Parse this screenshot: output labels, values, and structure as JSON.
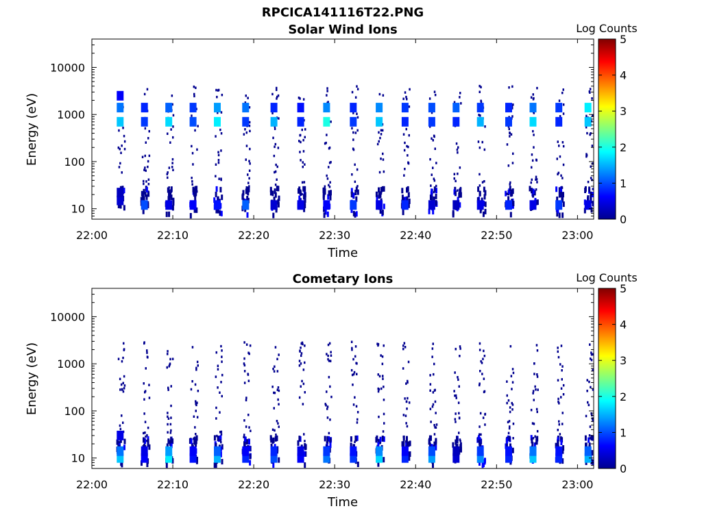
{
  "figure_title": "RPCICA141116T22.PNG",
  "colorbar": {
    "label": "Log Counts",
    "ticks": [
      "0",
      "1",
      "2",
      "3",
      "4",
      "5"
    ],
    "range": [
      0,
      5
    ],
    "colormap": "jet"
  },
  "chart_data": [
    {
      "type": "heatmap",
      "title": "Solar Wind Ions",
      "xlabel": "Time",
      "ylabel": "Energy (eV)",
      "yscale": "log",
      "ylim": [
        6,
        40000
      ],
      "xlim": [
        "22:00",
        "23:02"
      ],
      "x_tick_labels": [
        "22:00",
        "22:10",
        "22:20",
        "22:30",
        "22:40",
        "22:50",
        "23:00"
      ],
      "y_tick_labels": [
        "10",
        "100",
        "1000",
        "10000"
      ],
      "scan_times_min": [
        3.5,
        6.5,
        9.5,
        12.5,
        15.5,
        19.0,
        22.5,
        25.8,
        29.0,
        32.3,
        35.5,
        38.7,
        42.0,
        45.0,
        48.0,
        51.5,
        54.5,
        57.7,
        61.3
      ],
      "cells": [
        {
          "t": 3.5,
          "e": 700,
          "v": 1.6
        },
        {
          "t": 3.5,
          "e": 1400,
          "v": 1.2
        },
        {
          "t": 3.5,
          "e": 2500,
          "v": 0.6
        },
        {
          "t": 3.5,
          "e": 15,
          "v": 0.4
        },
        {
          "t": 3.5,
          "e": 22,
          "v": 0.3
        },
        {
          "t": 6.5,
          "e": 700,
          "v": 0.9
        },
        {
          "t": 6.5,
          "e": 1400,
          "v": 0.8
        },
        {
          "t": 6.5,
          "e": 12,
          "v": 1.0
        },
        {
          "t": 9.5,
          "e": 700,
          "v": 1.7
        },
        {
          "t": 9.5,
          "e": 1400,
          "v": 1.1
        },
        {
          "t": 9.5,
          "e": 12,
          "v": 0.5
        },
        {
          "t": 12.5,
          "e": 700,
          "v": 1.0
        },
        {
          "t": 12.5,
          "e": 1400,
          "v": 0.9
        },
        {
          "t": 12.5,
          "e": 12,
          "v": 0.6
        },
        {
          "t": 15.5,
          "e": 700,
          "v": 1.8
        },
        {
          "t": 15.5,
          "e": 1400,
          "v": 1.4
        },
        {
          "t": 15.5,
          "e": 12,
          "v": 0.7
        },
        {
          "t": 19.0,
          "e": 700,
          "v": 0.9
        },
        {
          "t": 19.0,
          "e": 1400,
          "v": 1.2
        },
        {
          "t": 19.0,
          "e": 12,
          "v": 1.1
        },
        {
          "t": 22.5,
          "e": 700,
          "v": 1.5
        },
        {
          "t": 22.5,
          "e": 1400,
          "v": 0.8
        },
        {
          "t": 22.5,
          "e": 12,
          "v": 0.4
        },
        {
          "t": 25.8,
          "e": 700,
          "v": 0.8
        },
        {
          "t": 25.8,
          "e": 1400,
          "v": 0.7
        },
        {
          "t": 25.8,
          "e": 12,
          "v": 0.5
        },
        {
          "t": 29.0,
          "e": 700,
          "v": 2.0
        },
        {
          "t": 29.0,
          "e": 1400,
          "v": 1.3
        },
        {
          "t": 29.0,
          "e": 12,
          "v": 0.6
        },
        {
          "t": 32.3,
          "e": 700,
          "v": 0.9
        },
        {
          "t": 32.3,
          "e": 1400,
          "v": 0.8
        },
        {
          "t": 32.3,
          "e": 12,
          "v": 0.9
        },
        {
          "t": 35.5,
          "e": 700,
          "v": 1.6
        },
        {
          "t": 35.5,
          "e": 1400,
          "v": 1.3
        },
        {
          "t": 35.5,
          "e": 12,
          "v": 0.5
        },
        {
          "t": 38.7,
          "e": 700,
          "v": 0.8
        },
        {
          "t": 38.7,
          "e": 1400,
          "v": 0.9
        },
        {
          "t": 38.7,
          "e": 12,
          "v": 0.8
        },
        {
          "t": 42.0,
          "e": 700,
          "v": 0.9
        },
        {
          "t": 42.0,
          "e": 1400,
          "v": 1.0
        },
        {
          "t": 42.0,
          "e": 12,
          "v": 0.4
        },
        {
          "t": 45.0,
          "e": 700,
          "v": 0.8
        },
        {
          "t": 45.0,
          "e": 1400,
          "v": 1.1
        },
        {
          "t": 45.0,
          "e": 12,
          "v": 0.3
        },
        {
          "t": 48.0,
          "e": 700,
          "v": 1.5
        },
        {
          "t": 48.0,
          "e": 1400,
          "v": 0.9
        },
        {
          "t": 48.0,
          "e": 12,
          "v": 0.5
        },
        {
          "t": 51.5,
          "e": 700,
          "v": 0.9
        },
        {
          "t": 51.5,
          "e": 1400,
          "v": 0.8
        },
        {
          "t": 51.5,
          "e": 12,
          "v": 0.8
        },
        {
          "t": 54.5,
          "e": 700,
          "v": 1.7
        },
        {
          "t": 54.5,
          "e": 1400,
          "v": 1.2
        },
        {
          "t": 54.5,
          "e": 12,
          "v": 0.5
        },
        {
          "t": 57.7,
          "e": 700,
          "v": 0.8
        },
        {
          "t": 57.7,
          "e": 1400,
          "v": 0.9
        },
        {
          "t": 57.7,
          "e": 12,
          "v": 0.9
        },
        {
          "t": 61.3,
          "e": 700,
          "v": 1.6
        },
        {
          "t": 61.3,
          "e": 1400,
          "v": 1.8
        },
        {
          "t": 61.3,
          "e": 12,
          "v": 0.5
        }
      ]
    },
    {
      "type": "heatmap",
      "title": "Cometary Ions",
      "xlabel": "Time",
      "ylabel": "Energy (eV)",
      "yscale": "log",
      "ylim": [
        6,
        40000
      ],
      "xlim": [
        "22:00",
        "23:02"
      ],
      "x_tick_labels": [
        "22:00",
        "22:10",
        "22:20",
        "22:30",
        "22:40",
        "22:50",
        "23:00"
      ],
      "y_tick_labels": [
        "10",
        "100",
        "1000",
        "10000"
      ],
      "scan_times_min": [
        3.5,
        6.5,
        9.5,
        12.5,
        15.5,
        19.0,
        22.5,
        25.8,
        29.0,
        32.3,
        35.5,
        38.7,
        42.0,
        45.0,
        48.0,
        51.5,
        54.5,
        57.7,
        61.3
      ],
      "cells": [
        {
          "t": 3.5,
          "e": 10,
          "v": 1.6
        },
        {
          "t": 3.5,
          "e": 14,
          "v": 1.2
        },
        {
          "t": 3.5,
          "e": 30,
          "v": 0.5
        },
        {
          "t": 6.5,
          "e": 10,
          "v": 0.6
        },
        {
          "t": 6.5,
          "e": 14,
          "v": 0.5
        },
        {
          "t": 9.5,
          "e": 10,
          "v": 1.8
        },
        {
          "t": 9.5,
          "e": 14,
          "v": 1.4
        },
        {
          "t": 12.5,
          "e": 10,
          "v": 0.7
        },
        {
          "t": 12.5,
          "e": 14,
          "v": 0.6
        },
        {
          "t": 15.5,
          "e": 10,
          "v": 1.5
        },
        {
          "t": 15.5,
          "e": 14,
          "v": 1.1
        },
        {
          "t": 19.0,
          "e": 10,
          "v": 0.8
        },
        {
          "t": 19.0,
          "e": 14,
          "v": 0.6
        },
        {
          "t": 22.5,
          "e": 10,
          "v": 1.0
        },
        {
          "t": 22.5,
          "e": 14,
          "v": 0.8
        },
        {
          "t": 25.8,
          "e": 10,
          "v": 0.6
        },
        {
          "t": 25.8,
          "e": 14,
          "v": 0.5
        },
        {
          "t": 29.0,
          "e": 10,
          "v": 1.2
        },
        {
          "t": 29.0,
          "e": 14,
          "v": 0.9
        },
        {
          "t": 32.3,
          "e": 10,
          "v": 0.9
        },
        {
          "t": 32.3,
          "e": 14,
          "v": 0.7
        },
        {
          "t": 35.5,
          "e": 10,
          "v": 1.7
        },
        {
          "t": 35.5,
          "e": 14,
          "v": 1.3
        },
        {
          "t": 38.7,
          "e": 10,
          "v": 0.8
        },
        {
          "t": 38.7,
          "e": 14,
          "v": 0.6
        },
        {
          "t": 42.0,
          "e": 10,
          "v": 1.4
        },
        {
          "t": 42.0,
          "e": 14,
          "v": 1.0
        },
        {
          "t": 45.0,
          "e": 10,
          "v": 0.4
        },
        {
          "t": 45.0,
          "e": 14,
          "v": 0.3
        },
        {
          "t": 48.0,
          "e": 10,
          "v": 1.3
        },
        {
          "t": 48.0,
          "e": 14,
          "v": 0.9
        },
        {
          "t": 51.5,
          "e": 10,
          "v": 0.8
        },
        {
          "t": 51.5,
          "e": 14,
          "v": 0.7
        },
        {
          "t": 54.5,
          "e": 10,
          "v": 1.6
        },
        {
          "t": 54.5,
          "e": 14,
          "v": 1.2
        },
        {
          "t": 57.7,
          "e": 10,
          "v": 0.8
        },
        {
          "t": 57.7,
          "e": 14,
          "v": 0.7
        },
        {
          "t": 61.3,
          "e": 10,
          "v": 1.5
        },
        {
          "t": 61.3,
          "e": 14,
          "v": 1.1
        }
      ]
    }
  ]
}
